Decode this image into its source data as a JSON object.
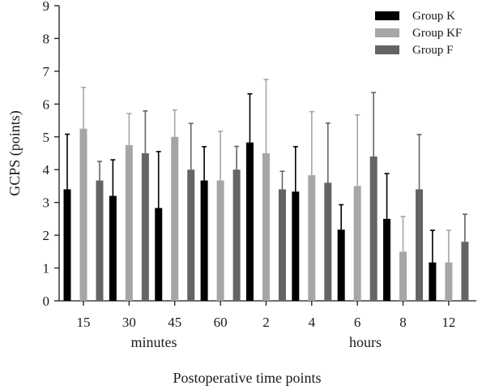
{
  "chart_data": {
    "type": "bar",
    "xlabel": "Postoperative time points",
    "ylabel": "GCPS (points)",
    "ylim": [
      0,
      9
    ],
    "yticks": [
      0,
      1,
      2,
      3,
      4,
      5,
      6,
      7,
      8,
      9
    ],
    "categories": [
      "15",
      "30",
      "45",
      "60",
      "2",
      "4",
      "6",
      "8",
      "12"
    ],
    "category_groups": [
      {
        "label": "minutes",
        "categories": [
          "15",
          "30",
          "45",
          "60"
        ]
      },
      {
        "label": "hours",
        "categories": [
          "2",
          "4",
          "6",
          "8",
          "12"
        ]
      }
    ],
    "legend_position": "top-right",
    "grid": false,
    "error_bars": "upper",
    "series": [
      {
        "name": "Group K",
        "color": "#000000",
        "values": [
          3.4,
          3.2,
          2.83,
          3.67,
          4.83,
          3.33,
          2.17,
          2.5,
          1.17
        ],
        "errors": [
          1.68,
          1.1,
          1.72,
          1.03,
          1.48,
          1.37,
          0.76,
          1.38,
          0.98
        ]
      },
      {
        "name": "Group KF",
        "color": "#a6a6a6",
        "values": [
          5.25,
          4.75,
          5.0,
          3.67,
          4.5,
          3.83,
          3.5,
          1.5,
          1.17
        ],
        "errors": [
          1.26,
          0.96,
          0.82,
          1.5,
          2.25,
          1.94,
          2.17,
          1.07,
          0.98
        ]
      },
      {
        "name": "Group F",
        "color": "#646464",
        "values": [
          3.67,
          4.5,
          4.0,
          4.0,
          3.4,
          3.6,
          4.4,
          3.4,
          1.8
        ],
        "errors": [
          0.58,
          1.29,
          1.41,
          0.71,
          0.55,
          1.82,
          1.95,
          1.67,
          0.84
        ]
      }
    ]
  }
}
